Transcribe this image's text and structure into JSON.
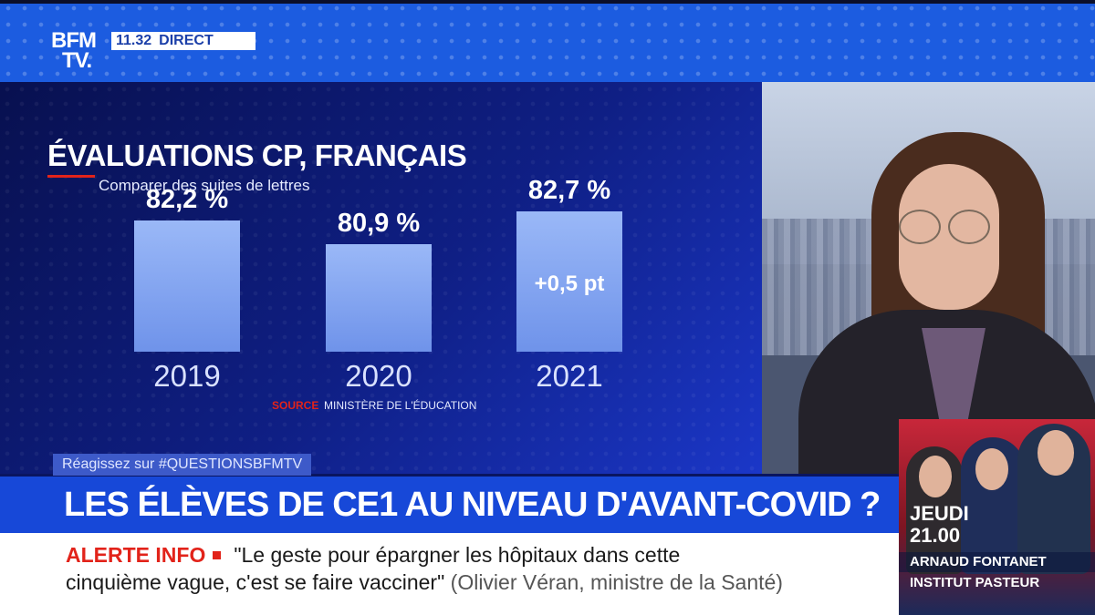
{
  "channel": {
    "logo_line1": "BFM",
    "logo_line2": "TV.",
    "time": "11.32",
    "live_label": "DIRECT"
  },
  "chart_data": {
    "type": "bar",
    "title": "ÉVALUATIONS CP, FRANÇAIS",
    "subtitle": "Comparer des suites de lettres",
    "categories": [
      "2019",
      "2020",
      "2021"
    ],
    "values": [
      82.2,
      80.9,
      82.7
    ],
    "value_labels": [
      "82,2 %",
      "80,9 %",
      "82,7 %"
    ],
    "annotations": [
      {
        "category": "2021",
        "text": "+0,5 pt"
      }
    ],
    "source_label": "SOURCE",
    "source_text": "MINISTÈRE DE L'ÉDUCATION",
    "colors": {
      "bar_top": "#9ab8f7",
      "bar_bottom": "#6f93ea",
      "accent": "#e2231a"
    }
  },
  "hashtag": "Réagissez sur #QUESTIONSBFMTV",
  "headline": "LES ÉLÈVES DE CE1 AU NIVEAU D'AVANT-COVID ?",
  "alert": {
    "label": "ALERTE INFO",
    "line1": "\"Le geste pour épargner les hôpitaux dans cette",
    "line2": "cinquième vague, c'est se faire vacciner\"",
    "attribution": "(Olivier Véran, ministre de la Santé)"
  },
  "promo": {
    "day": "JEUDI",
    "time": "21.00",
    "name": "ARNAUD FONTANET",
    "organization": "INSTITUT PASTEUR"
  }
}
